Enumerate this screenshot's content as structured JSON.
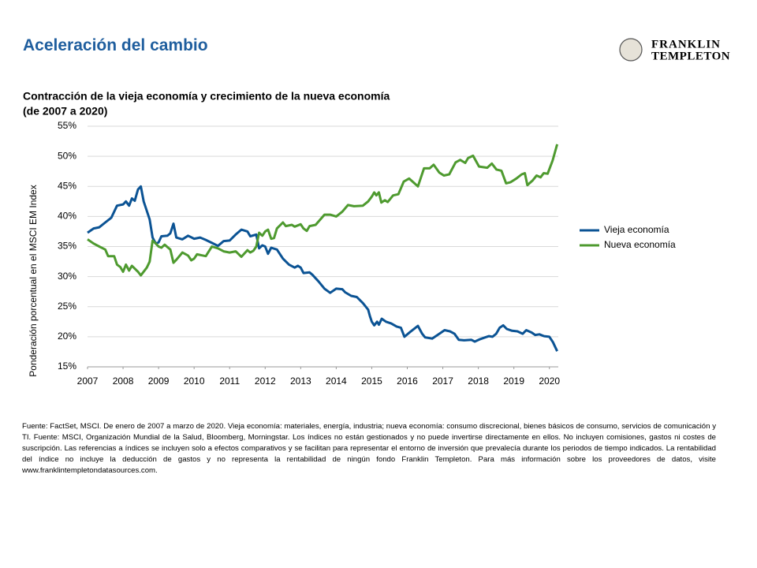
{
  "header": {
    "title": "Aceleración del cambio",
    "logo": [
      "FRANKLIN",
      "TEMPLETON"
    ]
  },
  "chart_data": {
    "type": "line",
    "title": "Contracción de la vieja economía y crecimiento de la nueva economía",
    "subtitle": "(de 2007 a 2020)",
    "y_label": "Ponderación porcentual en el MSCI EM Index",
    "xlim": [
      2007,
      2020.25
    ],
    "xticks": [
      2007,
      2008,
      2009,
      2010,
      2011,
      2012,
      2013,
      2014,
      2015,
      2016,
      2017,
      2018,
      2019,
      2020
    ],
    "ylim": [
      15,
      55
    ],
    "yticks": [
      {
        "value": 15,
        "label": "15%"
      },
      {
        "value": 20,
        "label": "20%"
      },
      {
        "value": 25,
        "label": "25%"
      },
      {
        "value": 30,
        "label": "30%"
      },
      {
        "value": 35,
        "label": "35%"
      },
      {
        "value": 40,
        "label": "40%"
      },
      {
        "value": 45,
        "label": "45%"
      },
      {
        "value": 50,
        "label": "50%"
      },
      {
        "value": 55,
        "label": "55%"
      }
    ],
    "grid": true,
    "legend": "right",
    "series": [
      {
        "name": "Vieja economía",
        "color": "#0b5394",
        "x": [
          2007.0,
          2007.17,
          2007.33,
          2007.5,
          2007.67,
          2007.83,
          2008.0,
          2008.08,
          2008.17,
          2008.25,
          2008.33,
          2008.42,
          2008.5,
          2008.58,
          2008.75,
          2008.83,
          2008.92,
          2009.0,
          2009.08,
          2009.25,
          2009.33,
          2009.42,
          2009.5,
          2009.67,
          2009.83,
          2010.0,
          2010.17,
          2010.33,
          2010.5,
          2010.67,
          2010.83,
          2011.0,
          2011.17,
          2011.33,
          2011.5,
          2011.58,
          2011.75,
          2011.83,
          2011.92,
          2012.0,
          2012.08,
          2012.17,
          2012.33,
          2012.5,
          2012.67,
          2012.83,
          2012.92,
          2013.0,
          2013.08,
          2013.25,
          2013.33,
          2013.5,
          2013.67,
          2013.83,
          2014.0,
          2014.17,
          2014.25,
          2014.42,
          2014.58,
          2014.75,
          2014.9,
          2014.95,
          2015.0,
          2015.07,
          2015.15,
          2015.2,
          2015.28,
          2015.4,
          2015.55,
          2015.7,
          2015.82,
          2015.92,
          2016.08,
          2016.3,
          2016.42,
          2016.5,
          2016.7,
          2016.9,
          2017.05,
          2017.2,
          2017.33,
          2017.45,
          2017.6,
          2017.8,
          2017.9,
          2018.05,
          2018.2,
          2018.3,
          2018.4,
          2018.5,
          2018.6,
          2018.7,
          2018.8,
          2018.95,
          2019.1,
          2019.25,
          2019.35,
          2019.5,
          2019.6,
          2019.72,
          2019.85,
          2020.0,
          2020.1,
          2020.22
        ],
        "values": [
          37.3,
          38.0,
          38.2,
          39.0,
          39.8,
          41.8,
          42.0,
          42.5,
          41.8,
          43.0,
          42.6,
          44.5,
          45.0,
          42.5,
          39.5,
          36.5,
          35.5,
          35.7,
          36.7,
          36.8,
          37.2,
          38.8,
          36.5,
          36.2,
          36.8,
          36.3,
          36.5,
          36.1,
          35.6,
          35.1,
          35.9,
          36.0,
          37.0,
          37.8,
          37.5,
          36.7,
          37.0,
          34.7,
          35.2,
          35.0,
          33.8,
          34.8,
          34.5,
          33.0,
          32.0,
          31.5,
          31.8,
          31.5,
          30.6,
          30.7,
          30.3,
          29.2,
          28.0,
          27.3,
          28.0,
          27.9,
          27.4,
          26.8,
          26.6,
          25.6,
          24.5,
          23.4,
          22.5,
          21.9,
          22.5,
          22.0,
          23.0,
          22.5,
          22.2,
          21.7,
          21.5,
          20.0,
          20.8,
          21.8,
          20.5,
          19.9,
          19.7,
          20.5,
          21.1,
          20.9,
          20.5,
          19.5,
          19.4,
          19.5,
          19.2,
          19.6,
          19.9,
          20.1,
          20.0,
          20.5,
          21.5,
          21.9,
          21.3,
          21.0,
          20.9,
          20.5,
          21.1,
          20.7,
          20.3,
          20.4,
          20.1,
          20.0,
          19.1,
          17.6
        ]
      },
      {
        "name": "Nueva economía",
        "color": "#4e9a2f",
        "x": [
          2007.0,
          2007.17,
          2007.33,
          2007.5,
          2007.58,
          2007.75,
          2007.83,
          2007.92,
          2008.0,
          2008.08,
          2008.17,
          2008.25,
          2008.42,
          2008.5,
          2008.67,
          2008.75,
          2008.83,
          2008.92,
          2009.0,
          2009.08,
          2009.17,
          2009.33,
          2009.42,
          2009.5,
          2009.67,
          2009.83,
          2009.92,
          2010.0,
          2010.08,
          2010.33,
          2010.5,
          2010.67,
          2010.83,
          2011.0,
          2011.17,
          2011.33,
          2011.5,
          2011.58,
          2011.67,
          2011.75,
          2011.83,
          2011.92,
          2012.0,
          2012.08,
          2012.17,
          2012.25,
          2012.33,
          2012.5,
          2012.58,
          2012.75,
          2012.83,
          2013.0,
          2013.08,
          2013.17,
          2013.25,
          2013.42,
          2013.67,
          2013.83,
          2014.0,
          2014.17,
          2014.33,
          2014.5,
          2014.75,
          2014.9,
          2015.0,
          2015.07,
          2015.13,
          2015.2,
          2015.27,
          2015.37,
          2015.45,
          2015.6,
          2015.75,
          2015.9,
          2016.05,
          2016.3,
          2016.47,
          2016.63,
          2016.74,
          2016.9,
          2017.03,
          2017.18,
          2017.36,
          2017.49,
          2017.63,
          2017.71,
          2017.85,
          2018.02,
          2018.25,
          2018.38,
          2018.51,
          2018.65,
          2018.78,
          2018.91,
          2019.07,
          2019.22,
          2019.31,
          2019.38,
          2019.53,
          2019.64,
          2019.75,
          2019.84,
          2019.95,
          2020.09,
          2020.22
        ],
        "values": [
          36.2,
          35.5,
          35.0,
          34.5,
          33.4,
          33.4,
          32.0,
          31.6,
          30.8,
          32.0,
          31.0,
          31.8,
          30.8,
          30.2,
          31.5,
          32.5,
          36.0,
          35.5,
          35.0,
          34.8,
          35.3,
          34.5,
          32.3,
          32.8,
          34.0,
          33.5,
          32.7,
          33.0,
          33.7,
          33.4,
          35.0,
          34.7,
          34.2,
          34.0,
          34.2,
          33.3,
          34.4,
          34.0,
          34.3,
          35.0,
          37.3,
          36.8,
          37.5,
          37.8,
          36.3,
          36.4,
          38.0,
          39.0,
          38.4,
          38.6,
          38.3,
          38.7,
          38.0,
          37.6,
          38.4,
          38.6,
          40.3,
          40.3,
          40.0,
          40.8,
          41.9,
          41.7,
          41.8,
          42.5,
          43.3,
          44.0,
          43.5,
          44.0,
          42.3,
          42.7,
          42.4,
          43.5,
          43.7,
          45.8,
          46.3,
          45.0,
          48.0,
          48.0,
          48.6,
          47.3,
          46.8,
          47.0,
          49.0,
          49.4,
          48.9,
          49.7,
          50.1,
          48.3,
          48.1,
          48.8,
          47.8,
          47.6,
          45.5,
          45.7,
          46.3,
          47.0,
          47.2,
          45.2,
          46.0,
          46.8,
          46.5,
          47.2,
          47.1,
          49.3,
          52.0
        ]
      }
    ]
  },
  "footnote": "Fuente: FactSet, MSCI. De enero de 2007 a marzo de 2020. Vieja economía: materiales, energía, industria; nueva economía: consumo discrecional, bienes básicos de consumo, servicios de comunicación y TI. Fuente: MSCI, Organización Mundial de la Salud, Bloomberg, Morningstar. Los índices no están gestionados y no puede invertirse directamente en ellos. No incluyen comisiones, gastos ni costes de suscripción. Las referencias a índices se incluyen solo a efectos comparativos y se facilitan para representar el entorno de inversión que prevalecía durante los periodos de tiempo indicados. La rentabilidad del índice no incluye la deducción de gastos y no representa la rentabilidad de ningún fondo Franklin Templeton. Para más información sobre los proveedores de datos, visite www.franklintempletondatasources.com."
}
